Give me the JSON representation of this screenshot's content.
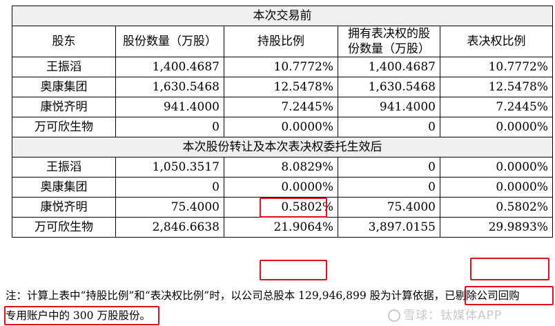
{
  "sections": {
    "before": "本次交易前",
    "after": "本次股份转让及本次表决权委托生效后"
  },
  "headers": {
    "holder": "股东",
    "shares": "股份数量（万股）",
    "ratio": "持股比例",
    "vote_shares": "拥有表决权的股份数量（万股）",
    "vote_ratio": "表决权比例"
  },
  "before_rows": [
    {
      "holder": "王振滔",
      "shares": "1,400.4687",
      "ratio": "10.7772%",
      "vote_shares": "1,400.4687",
      "vote_ratio": "10.7772%"
    },
    {
      "holder": "奥康集团",
      "shares": "1,630.5468",
      "ratio": "12.5478%",
      "vote_shares": "1,630.5468",
      "vote_ratio": "12.5478%"
    },
    {
      "holder": "康悦齐明",
      "shares": "941.4000",
      "ratio": "7.2445%",
      "vote_shares": "941.4000",
      "vote_ratio": "7.2445%"
    },
    {
      "holder": "万可欣生物",
      "shares": "0",
      "ratio": "0.0000%",
      "vote_shares": "0",
      "vote_ratio": "0.0000%"
    }
  ],
  "after_rows": [
    {
      "holder": "王振滔",
      "shares": "1,050.3517",
      "ratio": "8.0829%",
      "vote_shares": "0",
      "vote_ratio": "0.0000%"
    },
    {
      "holder": "奥康集团",
      "shares": "0",
      "ratio": "0.0000%",
      "vote_shares": "0",
      "vote_ratio": "0.0000%"
    },
    {
      "holder": "康悦齐明",
      "shares": "75.4000",
      "ratio": "0.5802%",
      "vote_shares": "75.4000",
      "vote_ratio": "0.5802%"
    },
    {
      "holder": "万可欣生物",
      "shares": "2,846.6638",
      "ratio": "21.9064%",
      "vote_shares": "3,897.0155",
      "vote_ratio": "29.9893%"
    }
  ],
  "note": {
    "line1": "注：计算上表中“持股比例”和“表决权比例”时，以公司总股本 129,946,899 股为计算依据，已剔除公司回购",
    "line2": "专用账户中的 300 万股股份。"
  },
  "watermark": "雪球：钛媒体APP",
  "highlight_color": "#e0101b"
}
